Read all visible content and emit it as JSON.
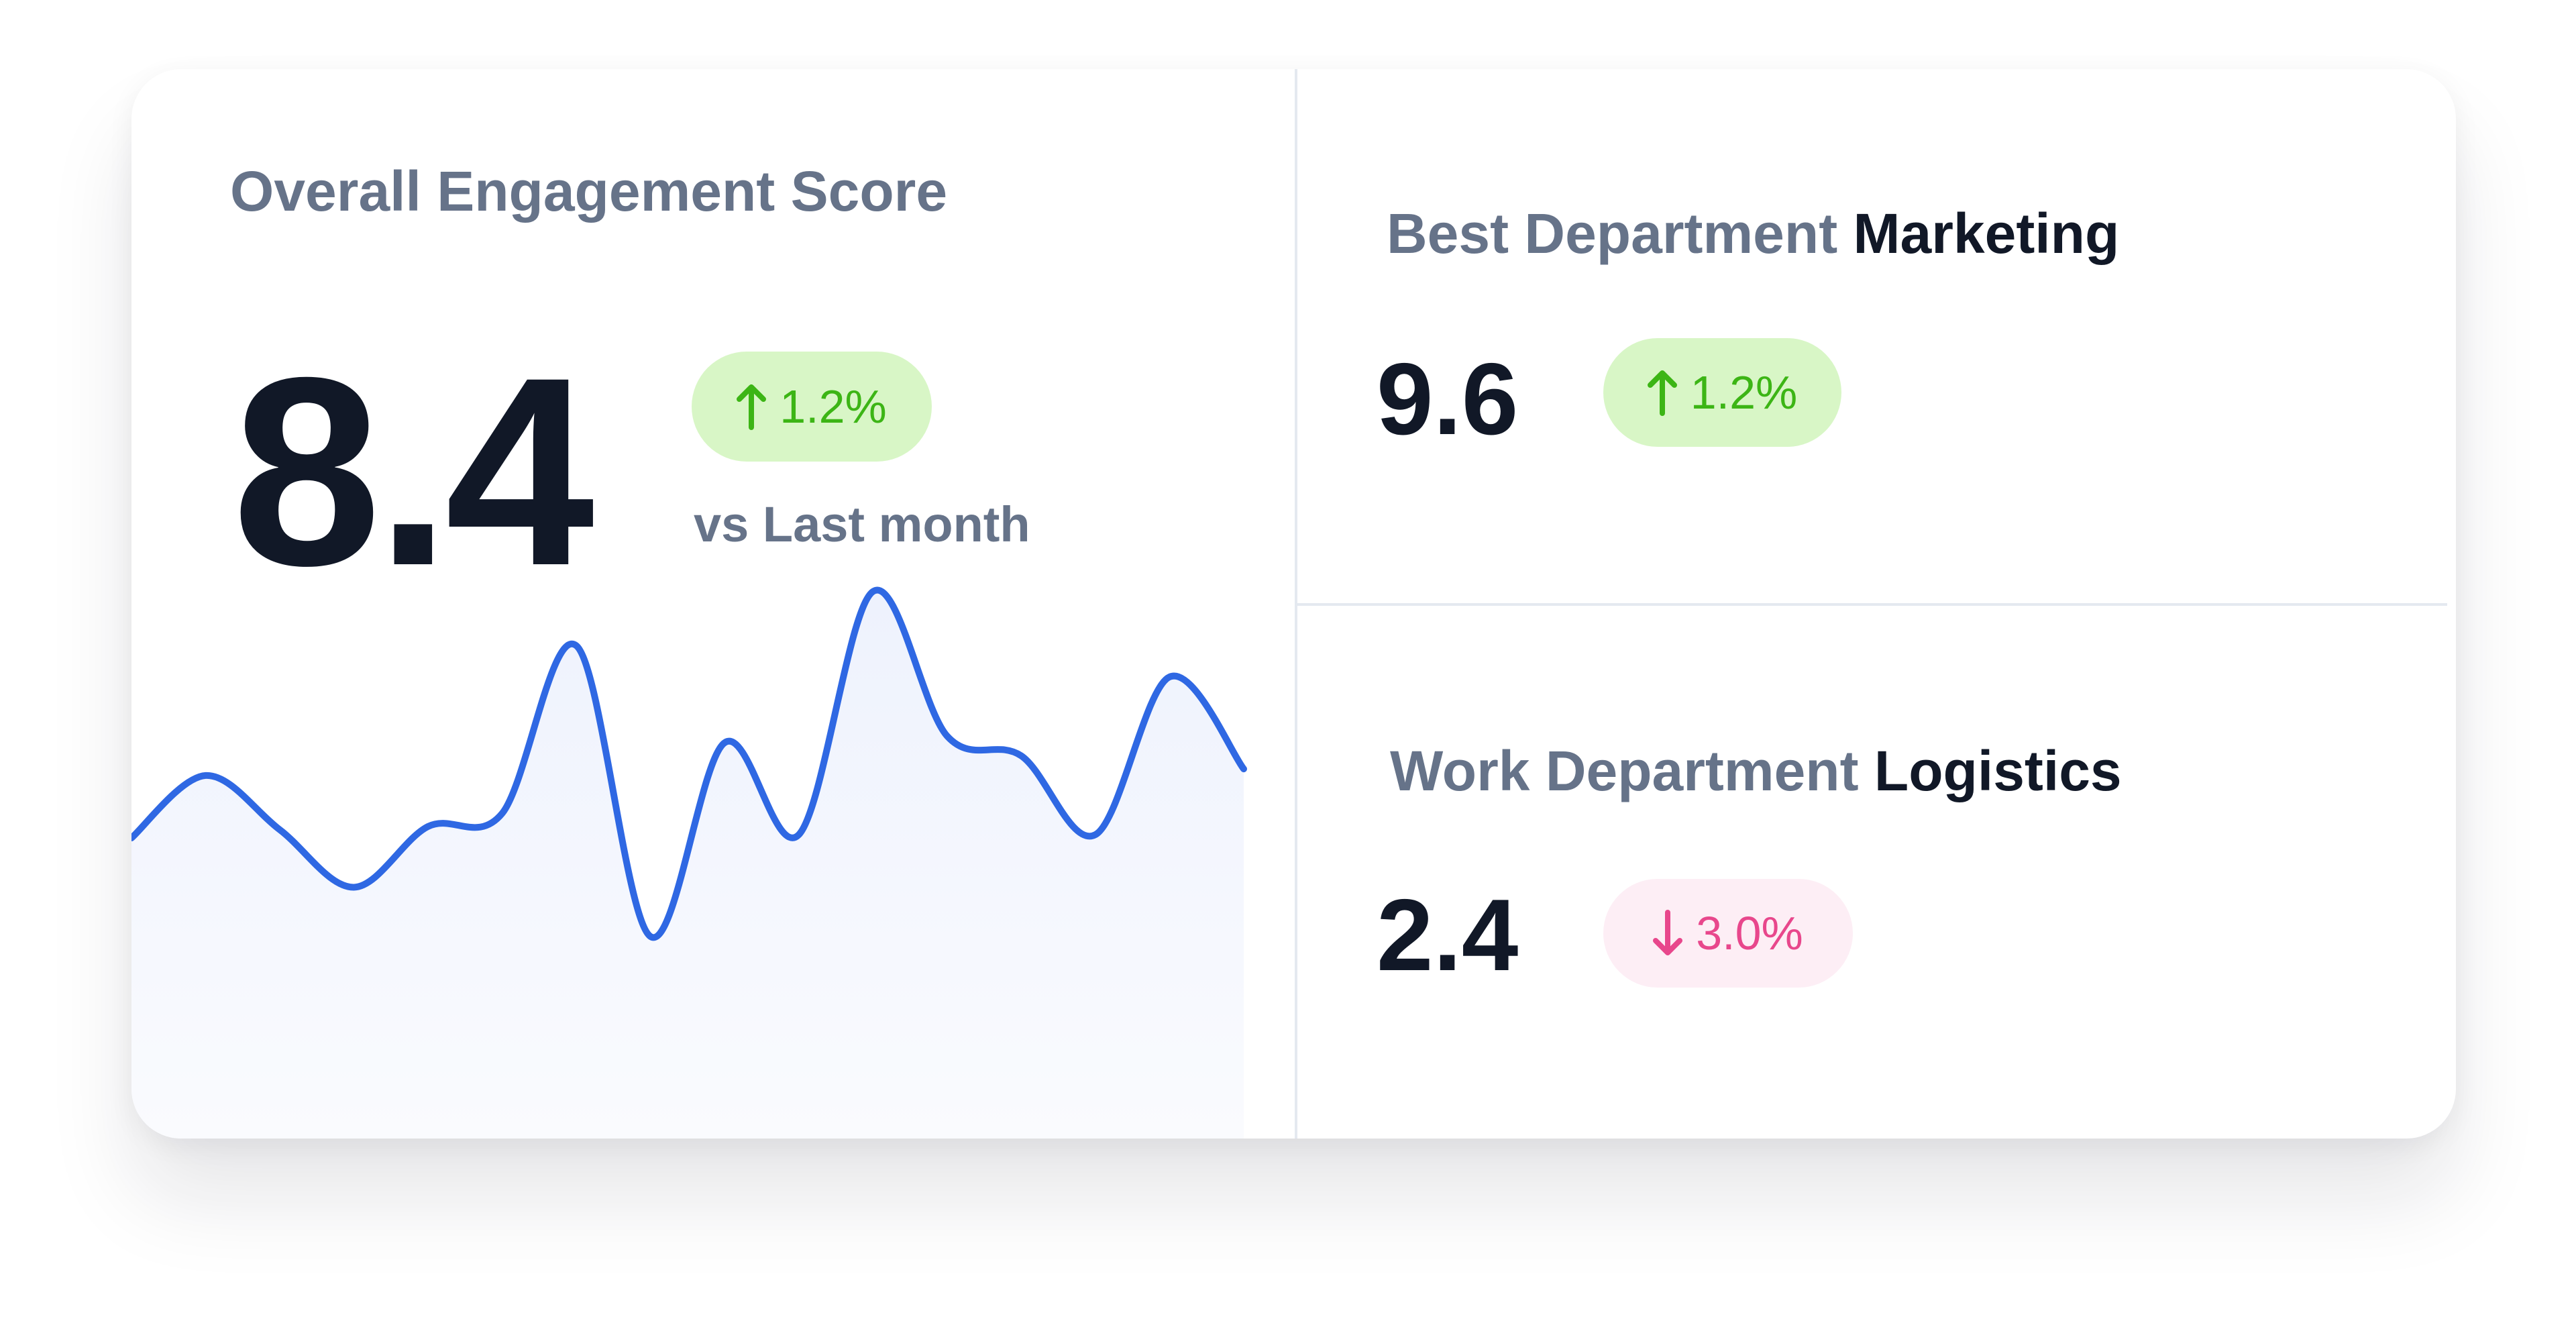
{
  "overall": {
    "title": "Overall Engagement Score",
    "score": "8.4",
    "change": "1.2%",
    "direction": "up",
    "comparison": "vs Last month",
    "sparkline": {
      "values": [
        90,
        128,
        95,
        60,
        97,
        105,
        207,
        30,
        148,
        92,
        240,
        152,
        140,
        92,
        188,
        132
      ]
    }
  },
  "best": {
    "label": "Best Department",
    "department": "Marketing",
    "score": "9.6",
    "change": "1.2%",
    "direction": "up"
  },
  "work": {
    "label": "Work Department",
    "department": "Logistics",
    "score": "2.4",
    "change": "3.0%",
    "direction": "down"
  }
}
